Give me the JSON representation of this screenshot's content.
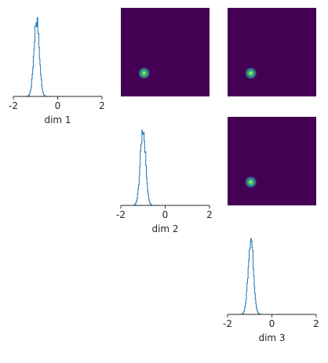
{
  "chart_data": [
    {
      "type": "line",
      "panel": "histogram",
      "row": 0,
      "col": 0,
      "xlabel": "dim 1",
      "xlim": [
        -2,
        2
      ],
      "xticks": [
        {
          "value": -2,
          "label": "-2"
        },
        {
          "value": 0,
          "label": "0"
        },
        {
          "value": 2,
          "label": "2"
        }
      ],
      "center": -0.95,
      "spread": 0.12,
      "color": "#1f77b4"
    },
    {
      "type": "heatmap",
      "panel": "2d-density",
      "row": 0,
      "col": 1,
      "xlim": [
        -2,
        2
      ],
      "ylim": [
        -2,
        2
      ],
      "peak": {
        "x": -0.95,
        "y": -0.95
      },
      "background_color": "#440154"
    },
    {
      "type": "heatmap",
      "panel": "2d-density",
      "row": 0,
      "col": 2,
      "xlim": [
        -2,
        2
      ],
      "ylim": [
        -2,
        2
      ],
      "peak": {
        "x": -0.95,
        "y": -0.95
      },
      "background_color": "#440154"
    },
    {
      "type": "line",
      "panel": "histogram",
      "row": 1,
      "col": 1,
      "xlabel": "dim 2",
      "xlim": [
        -2,
        2
      ],
      "xticks": [
        {
          "value": -2,
          "label": "-2"
        },
        {
          "value": 0,
          "label": "0"
        },
        {
          "value": 2,
          "label": "2"
        }
      ],
      "center": -1.0,
      "spread": 0.12,
      "color": "#1f77b4"
    },
    {
      "type": "heatmap",
      "panel": "2d-density",
      "row": 1,
      "col": 2,
      "xlim": [
        -2,
        2
      ],
      "ylim": [
        -2,
        2
      ],
      "peak": {
        "x": -0.95,
        "y": -0.95
      },
      "background_color": "#440154"
    },
    {
      "type": "line",
      "panel": "histogram",
      "row": 2,
      "col": 2,
      "xlabel": "dim 3",
      "xlim": [
        -2,
        2
      ],
      "xticks": [
        {
          "value": -2,
          "label": "-2"
        },
        {
          "value": 0,
          "label": "0"
        },
        {
          "value": 2,
          "label": "2"
        }
      ],
      "center": -0.95,
      "spread": 0.12,
      "color": "#1f77b4"
    }
  ]
}
